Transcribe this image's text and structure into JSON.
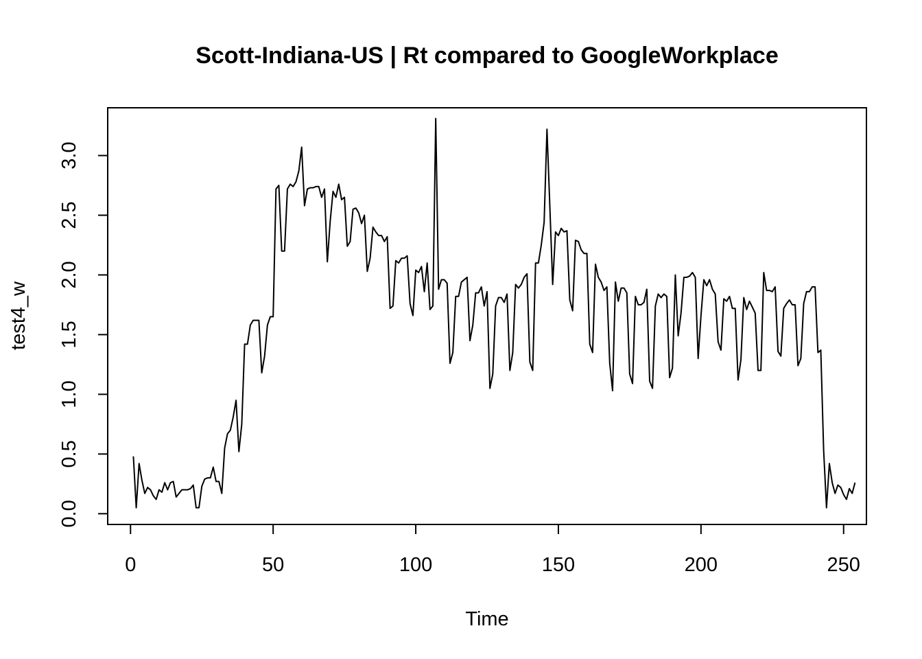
{
  "chart_data": {
    "type": "line",
    "title": "Scott-Indiana-US | Rt compared to GoogleWorkplace",
    "xlabel": "Time",
    "ylabel": "test4_w",
    "xlim": [
      -8,
      258
    ],
    "ylim": [
      -0.09,
      3.4
    ],
    "x_ticks": [
      0,
      50,
      100,
      150,
      200,
      250
    ],
    "y_ticks": [
      0.0,
      0.5,
      1.0,
      1.5,
      2.0,
      2.5,
      3.0
    ],
    "x_tick_labels": [
      "0",
      "50",
      "100",
      "150",
      "200",
      "250"
    ],
    "y_tick_labels": [
      "0.0",
      "0.5",
      "1.0",
      "1.5",
      "2.0",
      "2.5",
      "3.0"
    ],
    "grid": false,
    "legend": "none",
    "series": [
      {
        "color": "#000000",
        "x_start": 1,
        "x_step": 1,
        "values": [
          0.48,
          0.05,
          0.42,
          0.28,
          0.17,
          0.22,
          0.2,
          0.15,
          0.12,
          0.2,
          0.18,
          0.26,
          0.2,
          0.26,
          0.27,
          0.14,
          0.17,
          0.2,
          0.2,
          0.2,
          0.21,
          0.24,
          0.05,
          0.05,
          0.23,
          0.29,
          0.3,
          0.3,
          0.39,
          0.27,
          0.27,
          0.17,
          0.55,
          0.67,
          0.7,
          0.81,
          0.95,
          0.52,
          0.75,
          1.42,
          1.42,
          1.58,
          1.62,
          1.62,
          1.62,
          1.18,
          1.32,
          1.58,
          1.65,
          1.65,
          2.72,
          2.75,
          2.2,
          2.2,
          2.72,
          2.76,
          2.74,
          2.78,
          2.87,
          3.07,
          2.58,
          2.72,
          2.73,
          2.73,
          2.74,
          2.74,
          2.65,
          2.72,
          2.11,
          2.45,
          2.7,
          2.65,
          2.76,
          2.63,
          2.65,
          2.24,
          2.28,
          2.55,
          2.56,
          2.52,
          2.43,
          2.5,
          2.03,
          2.14,
          2.4,
          2.36,
          2.33,
          2.33,
          2.28,
          2.32,
          1.72,
          1.74,
          2.12,
          2.1,
          2.14,
          2.14,
          2.16,
          1.76,
          1.66,
          2.04,
          2.02,
          2.07,
          1.86,
          2.1,
          1.71,
          1.74,
          3.31,
          1.88,
          1.96,
          1.96,
          1.93,
          1.26,
          1.35,
          1.82,
          1.82,
          1.94,
          1.96,
          1.98,
          1.45,
          1.58,
          1.85,
          1.85,
          1.9,
          1.74,
          1.86,
          1.05,
          1.17,
          1.74,
          1.81,
          1.81,
          1.77,
          1.84,
          1.2,
          1.35,
          1.92,
          1.89,
          1.92,
          1.98,
          2.01,
          1.27,
          1.2,
          2.1,
          2.1,
          2.25,
          2.44,
          3.22,
          2.58,
          1.92,
          2.36,
          2.33,
          2.39,
          2.36,
          2.37,
          1.79,
          1.7,
          2.29,
          2.28,
          2.21,
          2.18,
          2.18,
          1.42,
          1.35,
          2.09,
          1.98,
          1.94,
          1.87,
          1.9,
          1.26,
          1.03,
          1.94,
          1.78,
          1.89,
          1.89,
          1.85,
          1.17,
          1.09,
          1.82,
          1.75,
          1.75,
          1.77,
          1.88,
          1.11,
          1.05,
          1.74,
          1.84,
          1.81,
          1.84,
          1.82,
          1.14,
          1.22,
          2.0,
          1.49,
          1.68,
          1.98,
          1.98,
          1.99,
          2.02,
          1.98,
          1.3,
          1.66,
          1.96,
          1.91,
          1.96,
          1.88,
          1.84,
          1.44,
          1.37,
          1.8,
          1.78,
          1.82,
          1.72,
          1.72,
          1.12,
          1.29,
          1.81,
          1.71,
          1.78,
          1.73,
          1.68,
          1.2,
          1.2,
          2.02,
          1.87,
          1.87,
          1.86,
          1.9,
          1.36,
          1.32,
          1.72,
          1.76,
          1.79,
          1.75,
          1.75,
          1.24,
          1.3,
          1.76,
          1.86,
          1.86,
          1.9,
          1.9,
          1.35,
          1.37,
          0.53,
          0.05,
          0.42,
          0.26,
          0.17,
          0.24,
          0.22,
          0.16,
          0.12,
          0.21,
          0.17,
          0.26
        ]
      }
    ]
  }
}
